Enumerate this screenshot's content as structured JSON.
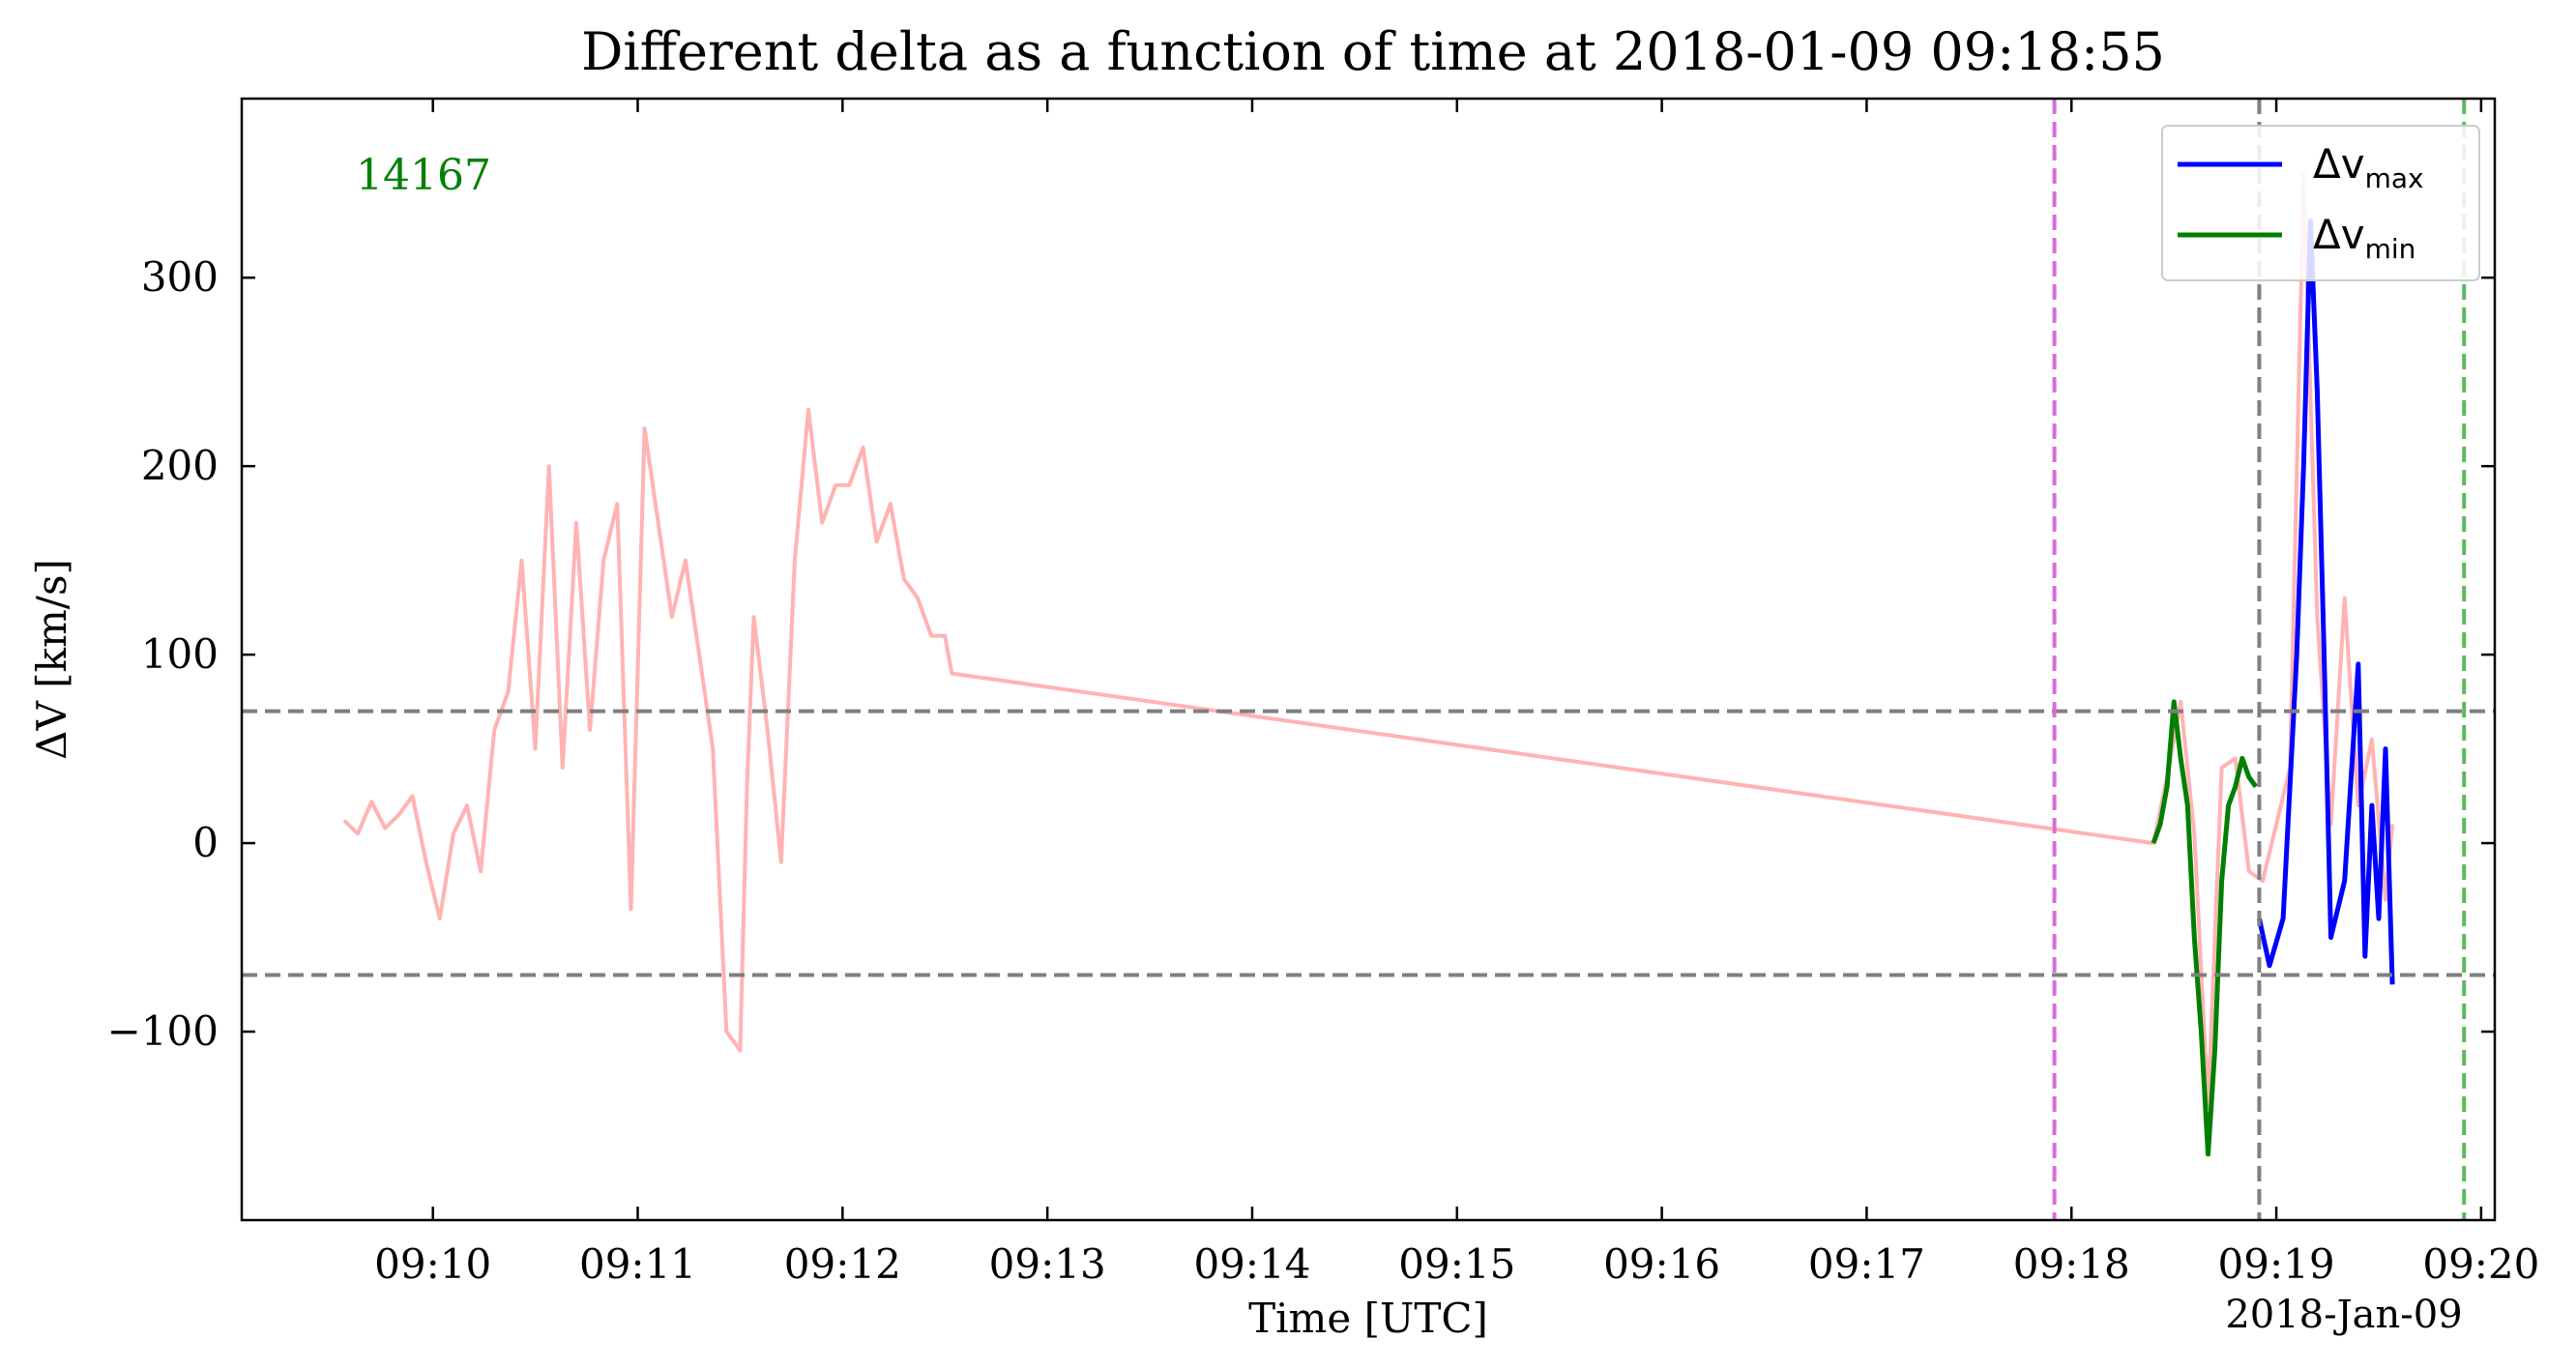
{
  "chart_data": {
    "type": "line",
    "title": "Different delta as a function of time at 2018-01-09 09:18:55",
    "xlabel": "Time [UTC]",
    "ylabel": "ΔV [km/s]",
    "x_date_label": "2018-Jan-09",
    "annotation": "14167",
    "xlim": [
      "09:09:04",
      "09:20:04"
    ],
    "ylim": [
      -200,
      395
    ],
    "x_ticks": [
      "09:10",
      "09:11",
      "09:12",
      "09:13",
      "09:14",
      "09:15",
      "09:16",
      "09:17",
      "09:18",
      "09:19",
      "09:20"
    ],
    "y_ticks": [
      -100,
      0,
      100,
      200,
      300
    ],
    "y_tick_labels": [
      "−100",
      "0",
      "100",
      "200",
      "300"
    ],
    "hlines": [
      {
        "y": 70,
        "color": "#7f7f7f",
        "style": "dashed"
      },
      {
        "y": -70,
        "color": "#7f7f7f",
        "style": "dashed"
      }
    ],
    "vlines": [
      {
        "x": "09:17:55",
        "color": "#d66ddb",
        "style": "dashed"
      },
      {
        "x": "09:18:55",
        "color": "#7f7f7f",
        "style": "dashed"
      },
      {
        "x": "09:19:55",
        "color": "#5cb85c",
        "style": "dashed"
      }
    ],
    "series": [
      {
        "color": "#ffb3b3",
        "x": [
          "09:09:34",
          "09:09:38",
          "09:09:42",
          "09:09:46",
          "09:09:50",
          "09:09:54",
          "09:09:58",
          "09:10:02",
          "09:10:06",
          "09:10:10",
          "09:10:14",
          "09:10:18",
          "09:10:22",
          "09:10:26",
          "09:10:30",
          "09:10:34",
          "09:10:38",
          "09:10:42",
          "09:10:46",
          "09:10:50",
          "09:10:54",
          "09:10:58",
          "09:11:02",
          "09:11:06",
          "09:11:10",
          "09:11:14",
          "09:11:18",
          "09:11:22",
          "09:11:26",
          "09:11:30",
          "09:11:32",
          "09:11:34",
          "09:11:38",
          "09:11:42",
          "09:11:46",
          "09:11:50",
          "09:11:54",
          "09:11:58",
          "09:12:02",
          "09:12:06",
          "09:12:10",
          "09:12:14",
          "09:12:18",
          "09:12:22",
          "09:12:26",
          "09:12:30",
          "09:12:32",
          "09:18:24",
          "09:18:28",
          "09:18:32",
          "09:18:36",
          "09:18:40",
          "09:18:44",
          "09:18:48",
          "09:18:52",
          "09:18:56",
          "09:19:00",
          "09:19:04",
          "09:19:08",
          "09:19:12",
          "09:19:16",
          "09:19:20",
          "09:19:24",
          "09:19:28",
          "09:19:32",
          "09:19:34"
        ],
        "y": [
          12,
          5,
          22,
          8,
          15,
          25,
          -10,
          -40,
          5,
          20,
          -15,
          60,
          80,
          150,
          50,
          200,
          40,
          170,
          60,
          150,
          180,
          -35,
          220,
          170,
          120,
          150,
          100,
          50,
          -100,
          -110,
          30,
          120,
          60,
          -10,
          150,
          230,
          170,
          190,
          190,
          210,
          160,
          180,
          140,
          130,
          110,
          110,
          90,
          0,
          35,
          75,
          5,
          -140,
          40,
          45,
          -15,
          -20,
          10,
          40,
          355,
          120,
          10,
          130,
          20,
          55,
          -30,
          10
        ]
      },
      {
        "name": "Δv_max",
        "color": "#0000ff",
        "x": [
          "09:18:55",
          "09:18:58",
          "09:19:02",
          "09:19:06",
          "09:19:08",
          "09:19:10",
          "09:19:12",
          "09:19:14",
          "09:19:16",
          "09:19:20",
          "09:19:24",
          "09:19:26",
          "09:19:28",
          "09:19:30",
          "09:19:32",
          "09:19:34"
        ],
        "y": [
          -40,
          -65,
          -40,
          100,
          200,
          330,
          240,
          100,
          -50,
          -20,
          95,
          -60,
          20,
          -40,
          50,
          -75
        ]
      },
      {
        "name": "Δv_min",
        "color": "#007f00",
        "x": [
          "09:18:24",
          "09:18:26",
          "09:18:28",
          "09:18:30",
          "09:18:32",
          "09:18:34",
          "09:18:36",
          "09:18:38",
          "09:18:40",
          "09:18:42",
          "09:18:44",
          "09:18:46",
          "09:18:48",
          "09:18:50",
          "09:18:52",
          "09:18:54"
        ],
        "y": [
          0,
          10,
          30,
          75,
          45,
          20,
          -50,
          -100,
          -165,
          -110,
          -20,
          20,
          30,
          45,
          35,
          30
        ]
      }
    ],
    "legend": {
      "position": "top-right",
      "entries": [
        {
          "label": "Δv",
          "sub": "max",
          "color": "#0000ff"
        },
        {
          "label": "Δv",
          "sub": "min",
          "color": "#007f00"
        }
      ]
    }
  }
}
